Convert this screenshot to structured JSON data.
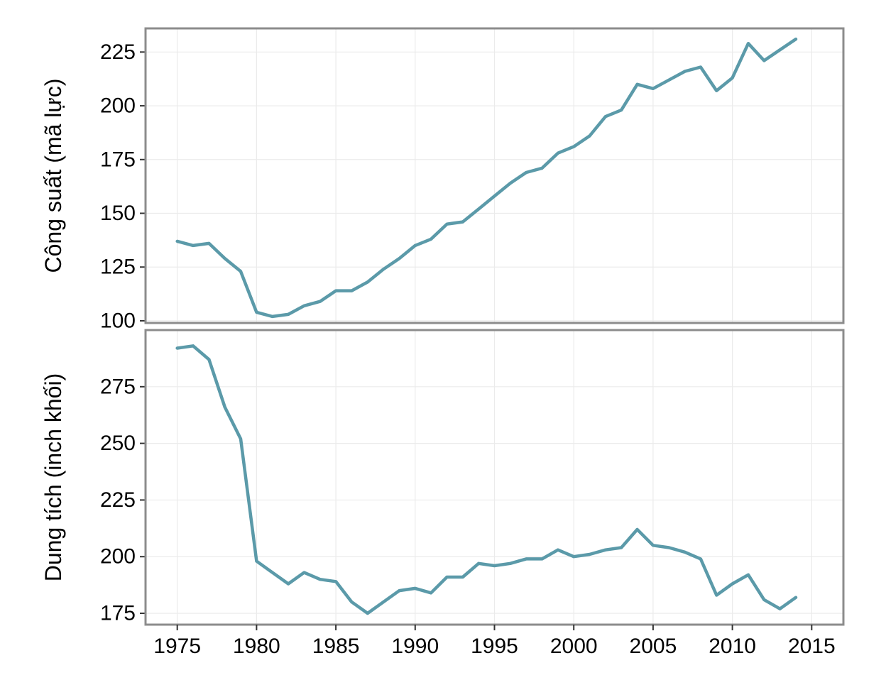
{
  "chart_data": {
    "type": "line",
    "x_ticks": [
      1975,
      1980,
      1985,
      1990,
      1995,
      2000,
      2005,
      2010,
      2015
    ],
    "xlim": [
      1973,
      2017
    ],
    "grid": true,
    "line_color": "#5b9aa9",
    "panels": [
      {
        "ylabel": "Công suất (mã lực)",
        "ylim": [
          99,
          236
        ],
        "y_ticks": [
          100,
          125,
          150,
          175,
          200,
          225
        ],
        "x": [
          1975,
          1976,
          1977,
          1978,
          1979,
          1980,
          1981,
          1982,
          1983,
          1984,
          1985,
          1986,
          1987,
          1988,
          1989,
          1990,
          1991,
          1992,
          1993,
          1994,
          1995,
          1996,
          1997,
          1998,
          1999,
          2000,
          2001,
          2002,
          2003,
          2004,
          2005,
          2006,
          2007,
          2008,
          2009,
          2010,
          2011,
          2012,
          2013,
          2014
        ],
        "values": [
          137,
          135,
          136,
          129,
          123,
          104,
          102,
          103,
          107,
          109,
          114,
          114,
          118,
          124,
          129,
          135,
          138,
          145,
          146,
          152,
          158,
          164,
          169,
          171,
          178,
          181,
          186,
          195,
          198,
          210,
          208,
          212,
          216,
          218,
          207,
          213,
          229,
          221,
          226,
          231
        ]
      },
      {
        "ylabel": "Dung tích (inch khối)",
        "ylim": [
          170,
          300
        ],
        "y_ticks": [
          175,
          200,
          225,
          250,
          275
        ],
        "x": [
          1975,
          1976,
          1977,
          1978,
          1979,
          1980,
          1981,
          1982,
          1983,
          1984,
          1985,
          1986,
          1987,
          1988,
          1989,
          1990,
          1991,
          1992,
          1993,
          1994,
          1995,
          1996,
          1997,
          1998,
          1999,
          2000,
          2001,
          2002,
          2003,
          2004,
          2005,
          2006,
          2007,
          2008,
          2009,
          2010,
          2011,
          2012,
          2013,
          2014
        ],
        "values": [
          292,
          293,
          287,
          266,
          252,
          198,
          193,
          188,
          193,
          190,
          189,
          180,
          175,
          180,
          185,
          186,
          184,
          191,
          191,
          197,
          196,
          197,
          199,
          199,
          203,
          200,
          201,
          203,
          204,
          212,
          205,
          204,
          202,
          199,
          183,
          188,
          192,
          181,
          177,
          182
        ]
      }
    ]
  }
}
